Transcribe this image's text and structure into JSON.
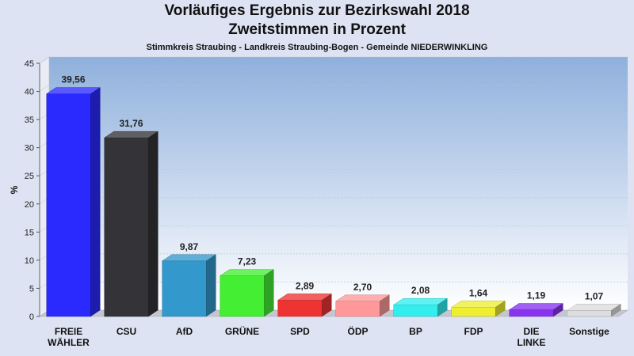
{
  "chart_data": {
    "type": "bar",
    "title": "Vorläufiges Ergebnis zur Bezirkswahl 2018",
    "subtitle": "Zweitstimmen in Prozent",
    "caption": "Stimmkreis Straubing - Landkreis Straubing-Bogen - Gemeinde NIEDERWINKLING",
    "ylabel": "%",
    "ylim": [
      0,
      45
    ],
    "yticks": [
      "0",
      "5",
      "10",
      "15",
      "20",
      "25",
      "30",
      "35",
      "40",
      "45"
    ],
    "grid": true,
    "categories": [
      "FREIE WÄHLER",
      "CSU",
      "AfD",
      "GRÜNE",
      "SPD",
      "ÖDP",
      "BP",
      "FDP",
      "DIE LINKE",
      "Sonstige"
    ],
    "category_lines": [
      [
        "FREIE",
        "WÄHLER"
      ],
      [
        "CSU"
      ],
      [
        "AfD"
      ],
      [
        "GRÜNE"
      ],
      [
        "SPD"
      ],
      [
        "ÖDP"
      ],
      [
        "BP"
      ],
      [
        "FDP"
      ],
      [
        "DIE",
        "LINKE"
      ],
      [
        "Sonstige"
      ]
    ],
    "values": [
      39.56,
      31.76,
      9.87,
      7.23,
      2.89,
      2.7,
      2.08,
      1.64,
      1.19,
      1.07
    ],
    "value_labels": [
      "39,56",
      "31,76",
      "9,87",
      "7,23",
      "2,89",
      "2,70",
      "2,08",
      "1,64",
      "1,19",
      "1,07"
    ],
    "colors": [
      "#2a2aff",
      "#333338",
      "#3399cc",
      "#44ee33",
      "#ee3333",
      "#ff9999",
      "#33eeee",
      "#eeee33",
      "#8833ee",
      "#dddddd"
    ]
  }
}
